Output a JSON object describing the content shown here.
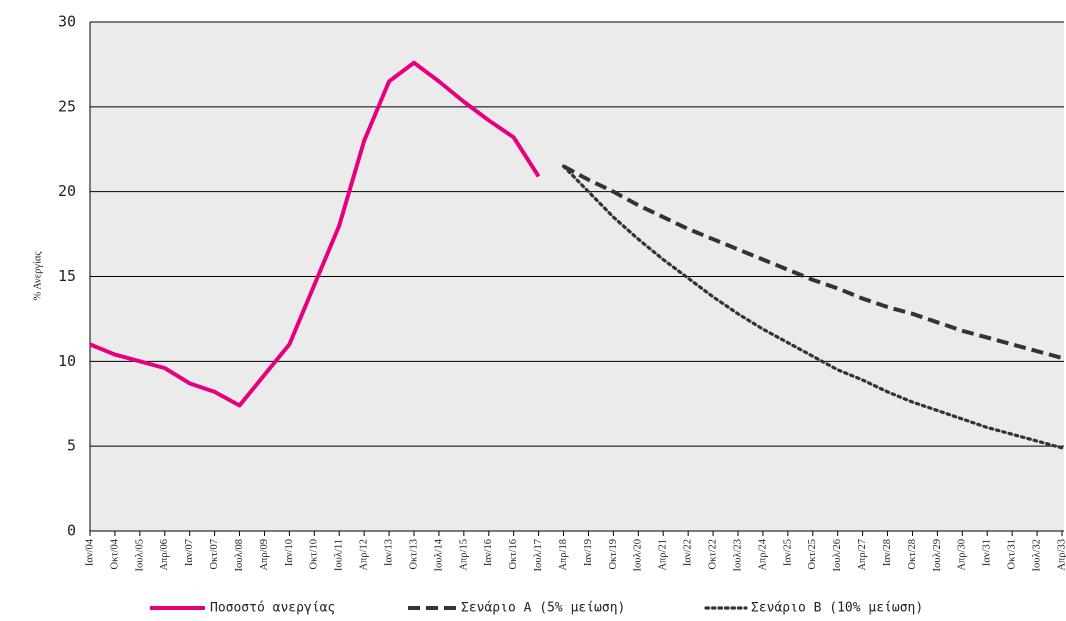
{
  "chart_data": {
    "type": "line",
    "ylabel": "% Ανεργίας",
    "categories": [
      "Ιαν/04",
      "Οκτ/04",
      "Ιουλ/05",
      "Απρ/06",
      "Ιαν/07",
      "Οκτ/07",
      "Ιουλ/08",
      "Απρ/09",
      "Ιαν/10",
      "Οκτ/10",
      "Ιουλ/11",
      "Απρ/12",
      "Ιαν/13",
      "Οκτ/13",
      "Ιουλ/14",
      "Απρ/15",
      "Ιαν/16",
      "Οκτ/16",
      "Ιουλ/17",
      "Απρ/18",
      "Ιαν/19",
      "Οκτ/19",
      "Ιουλ/20",
      "Απρ/21",
      "Ιαν/22",
      "Οκτ/22",
      "Ιουλ/23",
      "Απρ/24",
      "Ιαν/25",
      "Οκτ/25",
      "Ιουλ/26",
      "Απρ/27",
      "Ιαν/28",
      "Οκτ/28",
      "Ιουλ/29",
      "Απρ/30",
      "Ιαν/31",
      "Οκτ/31",
      "Ιουλ/32",
      "Απρ/33"
    ],
    "series": [
      {
        "name": "Ποσοστό ανεργίας",
        "color": "#e6007e",
        "style": "solid",
        "values": [
          11.0,
          10.4,
          10.0,
          9.6,
          8.7,
          8.2,
          7.4,
          9.2,
          11.0,
          14.5,
          18.0,
          23.0,
          26.5,
          27.6,
          26.5,
          25.3,
          24.2,
          23.2,
          20.9,
          null,
          null,
          null,
          null,
          null,
          null,
          null,
          null,
          null,
          null,
          null,
          null,
          null,
          null,
          null,
          null,
          null,
          null,
          null,
          null,
          null
        ]
      },
      {
        "name": "Σενάριο Α (5% μείωση)",
        "color": "#333333",
        "style": "dashed",
        "values": [
          null,
          null,
          null,
          null,
          null,
          null,
          null,
          null,
          null,
          null,
          null,
          null,
          null,
          null,
          null,
          null,
          null,
          null,
          null,
          21.5,
          20.7,
          20.0,
          19.2,
          18.5,
          17.8,
          17.2,
          16.6,
          16.0,
          15.4,
          14.8,
          14.3,
          13.7,
          13.2,
          12.8,
          12.3,
          11.8,
          11.4,
          11.0,
          10.6,
          10.2
        ]
      },
      {
        "name": "Σενάριο Β (10% μείωση)",
        "color": "#333333",
        "style": "dotted",
        "values": [
          null,
          null,
          null,
          null,
          null,
          null,
          null,
          null,
          null,
          null,
          null,
          null,
          null,
          null,
          null,
          null,
          null,
          null,
          null,
          21.5,
          20.0,
          18.5,
          17.2,
          16.0,
          14.9,
          13.8,
          12.8,
          11.9,
          11.1,
          10.3,
          9.5,
          8.9,
          8.2,
          7.6,
          7.1,
          6.6,
          6.1,
          5.7,
          5.3,
          4.9
        ]
      }
    ],
    "ylim": [
      0,
      30
    ],
    "yticks": [
      0,
      5,
      10,
      15,
      20,
      25,
      30
    ],
    "grid": true,
    "legend": "bottom"
  }
}
